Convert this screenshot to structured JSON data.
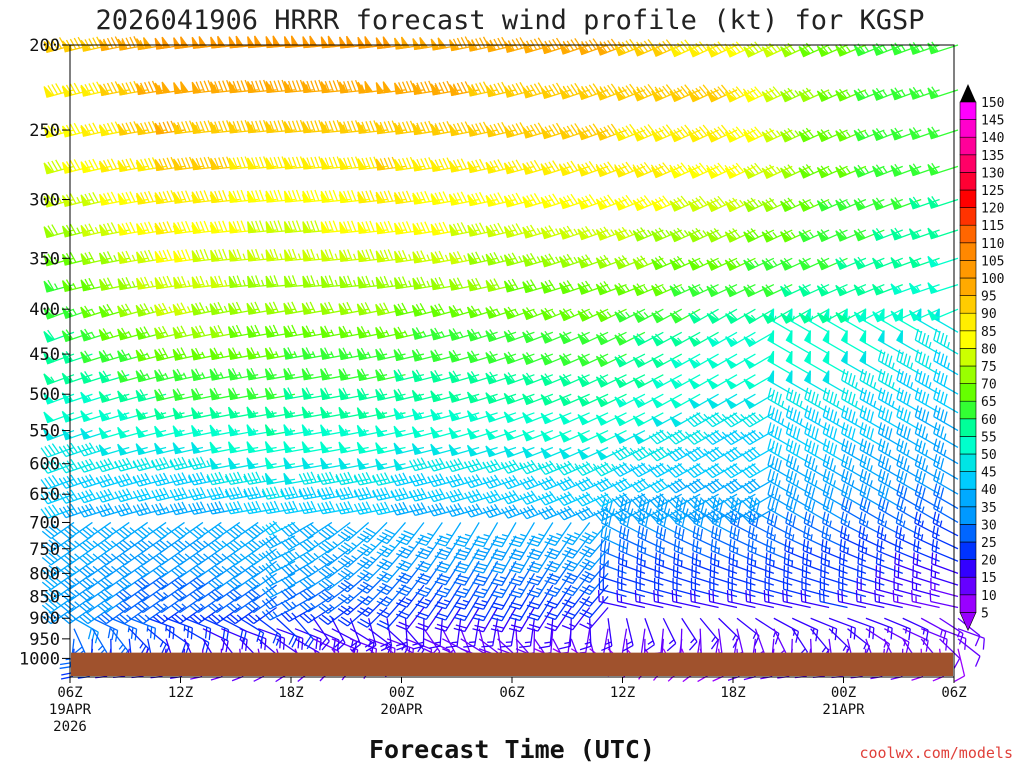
{
  "chart_data": {
    "type": "wind-barb-time-height",
    "title": "2026041906 HRRR forecast wind profile (kt) for KGSP",
    "xlabel": "Forecast Time (UTC)",
    "ylabel": "",
    "credit": "coolwx.com/models",
    "y_axis": {
      "units": "hPa",
      "scale": "log",
      "range": [
        1050,
        200
      ],
      "ticks": [
        "200",
        "250",
        "300",
        "350",
        "400",
        "450",
        "500",
        "550",
        "600",
        "650",
        "700",
        "750",
        "800",
        "850",
        "900",
        "950",
        "1000"
      ]
    },
    "x_axis": {
      "range_hours": [
        0,
        48
      ],
      "ticks": [
        {
          "hour": 0,
          "line1": "06Z",
          "line2": "19APR",
          "line3": "2026"
        },
        {
          "hour": 6,
          "line1": "12Z",
          "line2": "",
          "line3": ""
        },
        {
          "hour": 12,
          "line1": "18Z",
          "line2": "",
          "line3": ""
        },
        {
          "hour": 18,
          "line1": "00Z",
          "line2": "20APR",
          "line3": ""
        },
        {
          "hour": 24,
          "line1": "06Z",
          "line2": "",
          "line3": ""
        },
        {
          "hour": 30,
          "line1": "12Z",
          "line2": "",
          "line3": ""
        },
        {
          "hour": 36,
          "line1": "18Z",
          "line2": "",
          "line3": ""
        },
        {
          "hour": 42,
          "line1": "00Z",
          "line2": "21APR",
          "line3": ""
        },
        {
          "hour": 48,
          "line1": "06Z",
          "line2": "",
          "line3": ""
        }
      ]
    },
    "colorbar": {
      "levels": [
        5,
        10,
        15,
        20,
        25,
        30,
        35,
        40,
        45,
        50,
        55,
        60,
        65,
        70,
        75,
        80,
        85,
        90,
        95,
        100,
        105,
        110,
        115,
        120,
        125,
        130,
        135,
        140,
        145,
        150
      ],
      "colors": [
        "#9900ff",
        "#6600ff",
        "#3300ff",
        "#0033ff",
        "#0066ff",
        "#0099ff",
        "#00aaff",
        "#00ccff",
        "#00e5e5",
        "#00ffcc",
        "#00ff99",
        "#33ff33",
        "#66ff00",
        "#99ff00",
        "#ccff00",
        "#ffff00",
        "#ffee00",
        "#ffcc00",
        "#ffaa00",
        "#ff9900",
        "#ff8800",
        "#ff6600",
        "#ff3300",
        "#ff0000",
        "#ff0033",
        "#ff0066",
        "#ff0099",
        "#ff00cc",
        "#ff00ff",
        "#000000"
      ]
    },
    "terrain": {
      "color": "#a0522d",
      "surface_pressure_hpa": 985
    },
    "wind_profile": {
      "levels_hpa": [
        1000,
        975,
        950,
        925,
        900,
        875,
        850,
        825,
        800,
        775,
        750,
        725,
        700,
        675,
        650,
        625,
        600,
        575,
        550,
        525,
        500,
        475,
        450,
        425,
        400,
        375,
        350,
        325,
        300,
        275,
        250,
        225,
        200
      ],
      "speeds_kt": [
        [
          20,
          22,
          25,
          28,
          30,
          33,
          35,
          35,
          36,
          36,
          37,
          38,
          38,
          40,
          42,
          44,
          46,
          47,
          48,
          50,
          52,
          55,
          57,
          58,
          62,
          64,
          66,
          70,
          75,
          78,
          80,
          85,
          90
        ],
        [
          15,
          15,
          18,
          20,
          22,
          24,
          26,
          27,
          28,
          30,
          32,
          33,
          35,
          37,
          40,
          42,
          45,
          48,
          52,
          56,
          60,
          64,
          68,
          72,
          76,
          78,
          82,
          85,
          88,
          92,
          95,
          98,
          100
        ],
        [
          10,
          12,
          15,
          18,
          20,
          25,
          28,
          30,
          32,
          35,
          37,
          38,
          40,
          42,
          45,
          48,
          50,
          52,
          55,
          57,
          60,
          62,
          65,
          68,
          70,
          72,
          75,
          78,
          82,
          88,
          92,
          96,
          100
        ],
        [
          8,
          10,
          12,
          15,
          18,
          20,
          22,
          25,
          28,
          30,
          32,
          35,
          38,
          40,
          43,
          45,
          48,
          50,
          52,
          55,
          58,
          60,
          62,
          66,
          70,
          74,
          78,
          82,
          86,
          90,
          94,
          98,
          100
        ],
        [
          10,
          10,
          12,
          14,
          16,
          18,
          20,
          22,
          25,
          27,
          30,
          32,
          35,
          38,
          40,
          42,
          45,
          48,
          50,
          52,
          55,
          58,
          60,
          62,
          66,
          70,
          74,
          78,
          82,
          86,
          90,
          94,
          96
        ],
        [
          5,
          8,
          10,
          12,
          15,
          17,
          20,
          22,
          25,
          28,
          30,
          32,
          35,
          38,
          40,
          42,
          45,
          48,
          50,
          52,
          55,
          58,
          60,
          62,
          65,
          68,
          72,
          76,
          82,
          86,
          90,
          94,
          95
        ],
        [
          8,
          10,
          12,
          14,
          16,
          18,
          20,
          22,
          24,
          26,
          28,
          30,
          32,
          34,
          36,
          38,
          40,
          42,
          44,
          46,
          48,
          50,
          52,
          54,
          58,
          62,
          66,
          72,
          78,
          84,
          88,
          90,
          85
        ],
        [
          10,
          12,
          14,
          16,
          18,
          20,
          22,
          22,
          23,
          24,
          25,
          27,
          30,
          32,
          35,
          37,
          40,
          42,
          44,
          46,
          48,
          50,
          52,
          54,
          56,
          58,
          60,
          62,
          64,
          66,
          66,
          66,
          66
        ],
        [
          5,
          8,
          10,
          10,
          12,
          12,
          14,
          16,
          18,
          20,
          22,
          24,
          26,
          28,
          30,
          32,
          34,
          36,
          38,
          40,
          42,
          44,
          46,
          48,
          50,
          52,
          54,
          56,
          58,
          60,
          60,
          62,
          62
        ]
      ]
    }
  }
}
